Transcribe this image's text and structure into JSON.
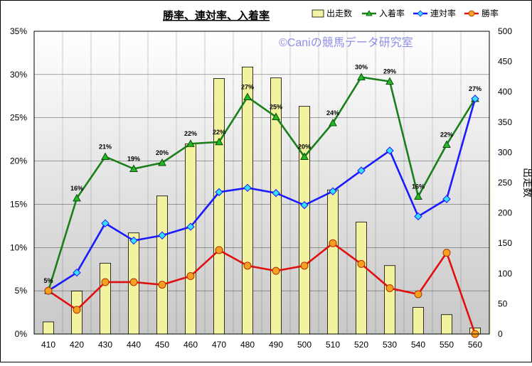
{
  "chart_data": {
    "type": "bar",
    "title": "勝率、連対率、入着率",
    "watermark": "©Caniの競馬データ研究室",
    "categories": [
      "410",
      "420",
      "430",
      "440",
      "450",
      "460",
      "470",
      "480",
      "490",
      "500",
      "510",
      "520",
      "530",
      "540",
      "550",
      "560"
    ],
    "series": [
      {
        "name": "出走数",
        "type": "bar",
        "axis": "right",
        "color": "#f2f2a0",
        "values": [
          20,
          71,
          117,
          167,
          228,
          314,
          422,
          441,
          423,
          376,
          238,
          185,
          113,
          44,
          32,
          10
        ]
      },
      {
        "name": "入着率",
        "type": "line",
        "axis": "left",
        "color": "#1a7f1a",
        "marker": "triangle",
        "values": [
          5.0,
          15.7,
          20.5,
          19.1,
          19.8,
          22.0,
          22.2,
          27.4,
          25.1,
          20.5,
          24.4,
          29.7,
          29.2,
          15.9,
          21.9,
          27.2
        ],
        "data_labels": [
          "5%",
          "16%",
          "21%",
          "19%",
          "20%",
          "22%",
          "22%",
          "27%",
          "25%",
          "20%",
          "24%",
          "30%",
          "29%",
          "16%",
          "22%",
          "27%"
        ]
      },
      {
        "name": "連対率",
        "type": "line",
        "axis": "left",
        "color": "#1a1aff",
        "marker": "diamond",
        "values": [
          5.0,
          7.1,
          12.8,
          10.8,
          11.4,
          12.4,
          16.4,
          16.9,
          16.3,
          14.9,
          16.5,
          18.9,
          21.2,
          13.6,
          15.6,
          27.2
        ]
      },
      {
        "name": "勝率",
        "type": "line",
        "axis": "left",
        "color": "#e01010",
        "marker": "circle",
        "values": [
          5.0,
          2.8,
          6.0,
          6.0,
          5.7,
          6.7,
          9.7,
          7.9,
          7.3,
          7.9,
          10.5,
          8.1,
          5.3,
          4.6,
          9.4,
          0.0
        ]
      }
    ],
    "y_left": {
      "ylim": [
        0,
        35
      ],
      "ticks": [
        "0%",
        "5%",
        "10%",
        "15%",
        "20%",
        "25%",
        "30%",
        "35%"
      ]
    },
    "y_right": {
      "label": "出走数",
      "ylim": [
        0,
        500
      ],
      "ticks": [
        "0",
        "50",
        "100",
        "150",
        "200",
        "250",
        "300",
        "350",
        "400",
        "450",
        "500"
      ]
    },
    "legend_position": "top-right",
    "grid": true
  }
}
